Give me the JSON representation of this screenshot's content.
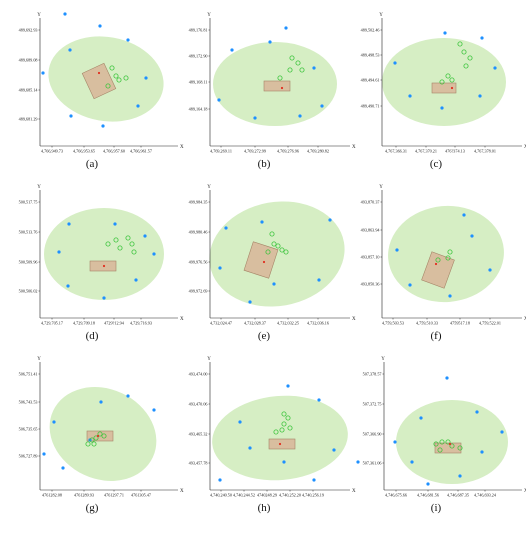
{
  "colors": {
    "ellipse": "#d6eec4",
    "rect_fill": "#d9b99b",
    "rect_stroke": "#a07a5e",
    "point": "#1e90ff",
    "ring": "#3cc43c",
    "star": "#e03020",
    "axis": "#222222"
  },
  "axis_letters": {
    "x": "X",
    "y": "Y"
  },
  "panels": [
    {
      "label": "(a)",
      "y_ticks": [
        "489,692.93",
        "489,689.08",
        "489,685.14",
        "489,681.29"
      ],
      "x_ticks": [
        "4,766,949.73",
        "4,766,953.65",
        "4,766,957.60",
        "4,766,961.57"
      ]
    },
    {
      "label": "(b)",
      "y_ticks": [
        "489,176.81",
        "489,172.90",
        "489,168.11",
        "489,164.18"
      ],
      "x_ticks": [
        "4,769,269.11",
        "4,769,272.99",
        "4,769,276.96",
        "4,769,280.82"
      ]
    },
    {
      "label": "(c)",
      "y_ticks": [
        "489,502.46",
        "489,498.53",
        "489,494.61",
        "489,490.71"
      ],
      "x_ticks": [
        "4,767,366.31",
        "4,767,370.21",
        "476?374.13",
        "4,767,378.01"
      ]
    },
    {
      "label": "(d)",
      "y_ticks": [
        "500,517.75",
        "500,513.76",
        "500,509.96",
        "500,506.02"
      ],
      "x_ticks": [
        "4,729,705.17",
        "4,729,709.18",
        "4729?12.94",
        "4,729,716.93"
      ]
    },
    {
      "label": "(e)",
      "y_ticks": [
        "499,984.35",
        "499,980.46",
        "499,976.56",
        "499,972.69"
      ],
      "x_ticks": [
        "4,732,024.47",
        "4,732,028.37",
        "4,732,032.25",
        "4,732,036.16"
      ]
    },
    {
      "label": "(f)",
      "y_ticks": [
        "493,870.37",
        "493,863.94",
        "493,857.10",
        "493,850.36"
      ],
      "x_ticks": [
        "4,759,503.53",
        "4,759,510.33",
        "4759517.18",
        "4,759,522.01"
      ]
    },
    {
      "label": "(g)",
      "y_ticks": [
        "506,751.41",
        "506,743.53",
        "506,735.65",
        "506,727.89"
      ],
      "x_ticks": [
        "4761282.08",
        "4761289.93",
        "4761297.71",
        "4761305.47"
      ]
    },
    {
      "label": "(h)",
      "y_ticks": [
        "493,474.00",
        "493,470.06",
        "493,465.32",
        "493,457.78"
      ],
      "x_ticks": [
        "4,740,240.50",
        "4,740,244.52",
        "4740248.29",
        "4,740,252.20",
        "4,740,256.19"
      ]
    },
    {
      "label": "(i)",
      "y_ticks": [
        "507,378.57",
        "507,372.75",
        "507,366.90",
        "507,361.06"
      ],
      "x_ticks": [
        "4,746,675.66",
        "4,746,681.56",
        "4,746,687.35",
        "4,746,693.24"
      ]
    }
  ]
}
